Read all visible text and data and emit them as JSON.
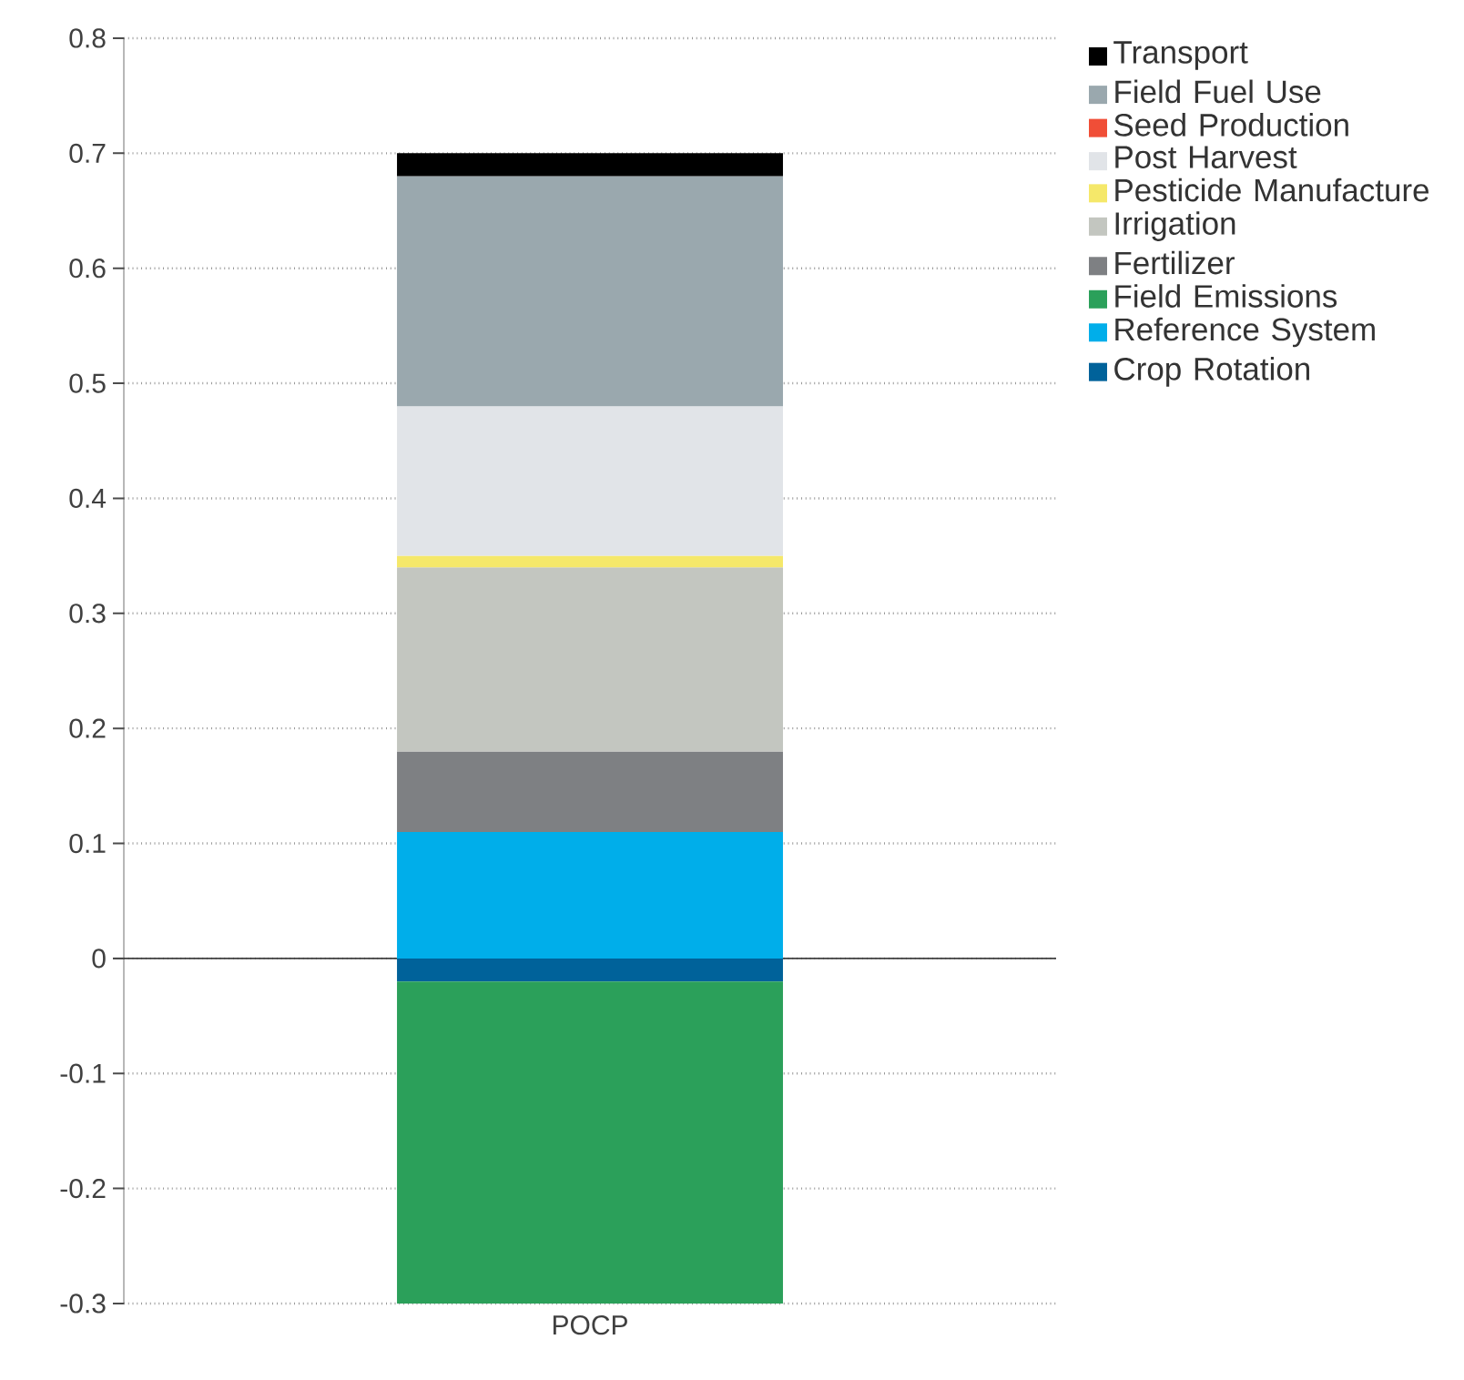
{
  "chart_data": {
    "type": "bar",
    "stacked": true,
    "categories": [
      "POCP"
    ],
    "series": [
      {
        "name": "Crop Rotation",
        "color": "#00629a",
        "values": [
          -0.02
        ]
      },
      {
        "name": "Reference System",
        "color": "#00aeea",
        "values": [
          0.11
        ]
      },
      {
        "name": "Field Emissions",
        "color": "#2ba05a",
        "values": [
          -0.28
        ]
      },
      {
        "name": "Fertilizer",
        "color": "#7e8083",
        "values": [
          0.07
        ]
      },
      {
        "name": "Irrigation",
        "color": "#c3c6c0",
        "values": [
          0.16
        ]
      },
      {
        "name": "Pesticide Manufacture",
        "color": "#f5e86a",
        "values": [
          0.01
        ]
      },
      {
        "name": "Post Harvest",
        "color": "#e1e4e8",
        "values": [
          0.13
        ]
      },
      {
        "name": "Seed Production",
        "color": "#f04e37",
        "values": [
          0
        ]
      },
      {
        "name": "Field Fuel Use",
        "color": "#9aa8ae",
        "values": [
          0.2
        ]
      },
      {
        "name": "Transport",
        "color": "#000000",
        "values": [
          0.02
        ]
      }
    ],
    "ylim": [
      -0.3,
      0.8
    ],
    "yticks": [
      -0.3,
      -0.2,
      -0.1,
      0,
      0.1,
      0.2,
      0.3,
      0.4,
      0.5,
      0.6,
      0.7,
      0.8
    ],
    "grid": "y",
    "legend": "right"
  }
}
